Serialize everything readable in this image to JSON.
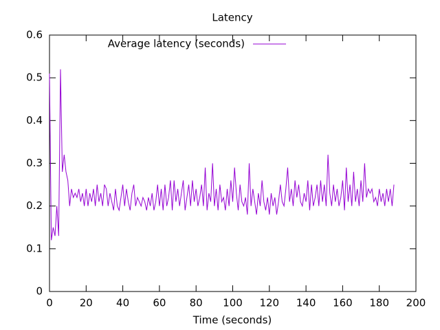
{
  "chart_data": {
    "type": "line",
    "title": "Latency",
    "x_label": "Time (seconds)",
    "xlim": [
      0,
      200
    ],
    "xticks": [
      0,
      20,
      40,
      60,
      80,
      100,
      120,
      140,
      160,
      180,
      200
    ],
    "ylim": [
      0,
      0.6
    ],
    "yticks": [
      0,
      0.1,
      0.2,
      0.3,
      0.4,
      0.5,
      0.6
    ],
    "legend": "top-left",
    "grid": false,
    "x": [
      0,
      1,
      2,
      3,
      4,
      5,
      6,
      7,
      8,
      9,
      10,
      11,
      12,
      13,
      14,
      15,
      16,
      17,
      18,
      19,
      20,
      21,
      22,
      23,
      24,
      25,
      26,
      27,
      28,
      29,
      30,
      31,
      32,
      33,
      34,
      35,
      36,
      37,
      38,
      39,
      40,
      41,
      42,
      43,
      44,
      45,
      46,
      47,
      48,
      49,
      50,
      51,
      52,
      53,
      54,
      55,
      56,
      57,
      58,
      59,
      60,
      61,
      62,
      63,
      64,
      65,
      66,
      67,
      68,
      69,
      70,
      71,
      72,
      73,
      74,
      75,
      76,
      77,
      78,
      79,
      80,
      81,
      82,
      83,
      84,
      85,
      86,
      87,
      88,
      89,
      90,
      91,
      92,
      93,
      94,
      95,
      96,
      97,
      98,
      99,
      100,
      101,
      102,
      103,
      104,
      105,
      106,
      107,
      108,
      109,
      110,
      111,
      112,
      113,
      114,
      115,
      116,
      117,
      118,
      119,
      120,
      121,
      122,
      123,
      124,
      125,
      126,
      127,
      128,
      129,
      130,
      131,
      132,
      133,
      134,
      135,
      136,
      137,
      138,
      139,
      140,
      141,
      142,
      143,
      144,
      145,
      146,
      147,
      148,
      149,
      150,
      151,
      152,
      153,
      154,
      155,
      156,
      157,
      158,
      159,
      160,
      161,
      162,
      163,
      164,
      165,
      166,
      167,
      168,
      169,
      170,
      171,
      172,
      173,
      174,
      175,
      176,
      177,
      178,
      179,
      180,
      181,
      182,
      183,
      184,
      185,
      186,
      187,
      188
    ],
    "series": [
      {
        "name": "Average latency (seconds)",
        "color": "#9400d3",
        "values": [
          0.51,
          0.12,
          0.15,
          0.13,
          0.2,
          0.13,
          0.52,
          0.28,
          0.32,
          0.28,
          0.26,
          0.2,
          0.24,
          0.22,
          0.23,
          0.22,
          0.24,
          0.21,
          0.23,
          0.2,
          0.24,
          0.2,
          0.23,
          0.21,
          0.24,
          0.2,
          0.25,
          0.21,
          0.23,
          0.2,
          0.25,
          0.24,
          0.2,
          0.23,
          0.21,
          0.19,
          0.24,
          0.2,
          0.19,
          0.22,
          0.25,
          0.2,
          0.24,
          0.21,
          0.19,
          0.23,
          0.25,
          0.2,
          0.22,
          0.21,
          0.2,
          0.22,
          0.21,
          0.19,
          0.22,
          0.2,
          0.23,
          0.19,
          0.21,
          0.25,
          0.2,
          0.24,
          0.19,
          0.25,
          0.2,
          0.22,
          0.26,
          0.19,
          0.26,
          0.21,
          0.24,
          0.2,
          0.23,
          0.26,
          0.19,
          0.22,
          0.25,
          0.2,
          0.26,
          0.21,
          0.24,
          0.2,
          0.22,
          0.25,
          0.2,
          0.29,
          0.19,
          0.23,
          0.21,
          0.3,
          0.2,
          0.24,
          0.19,
          0.25,
          0.21,
          0.22,
          0.19,
          0.24,
          0.2,
          0.26,
          0.21,
          0.29,
          0.23,
          0.19,
          0.25,
          0.21,
          0.2,
          0.22,
          0.18,
          0.3,
          0.2,
          0.24,
          0.21,
          0.18,
          0.23,
          0.2,
          0.26,
          0.21,
          0.19,
          0.22,
          0.18,
          0.23,
          0.2,
          0.22,
          0.18,
          0.21,
          0.25,
          0.21,
          0.2,
          0.24,
          0.29,
          0.21,
          0.24,
          0.2,
          0.26,
          0.22,
          0.25,
          0.21,
          0.2,
          0.23,
          0.21,
          0.26,
          0.19,
          0.25,
          0.2,
          0.22,
          0.25,
          0.2,
          0.26,
          0.21,
          0.25,
          0.2,
          0.32,
          0.23,
          0.2,
          0.25,
          0.21,
          0.24,
          0.2,
          0.22,
          0.26,
          0.19,
          0.29,
          0.21,
          0.25,
          0.2,
          0.28,
          0.21,
          0.24,
          0.2,
          0.26,
          0.21,
          0.3,
          0.22,
          0.24,
          0.23,
          0.24,
          0.21,
          0.22,
          0.2,
          0.24,
          0.21,
          0.23,
          0.2,
          0.24,
          0.21,
          0.24,
          0.2,
          0.25
        ]
      }
    ]
  }
}
